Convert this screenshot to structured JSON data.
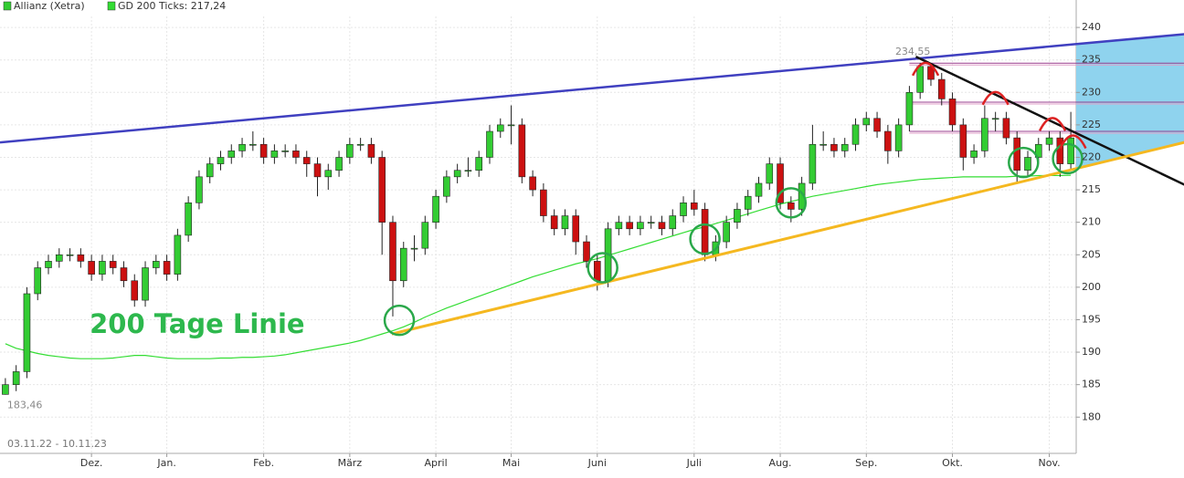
{
  "chart_data": {
    "type": "candlestick",
    "date_range": "03.11.22 - 10.11.23",
    "categories": [
      null,
      null,
      null,
      null,
      null,
      null,
      null,
      null,
      "Dez.",
      null,
      null,
      null,
      null,
      null,
      null,
      "Jan.",
      null,
      null,
      null,
      null,
      null,
      null,
      null,
      null,
      "Feb.",
      null,
      null,
      null,
      null,
      null,
      null,
      null,
      "März",
      null,
      null,
      null,
      null,
      null,
      null,
      null,
      "April",
      null,
      null,
      null,
      null,
      null,
      null,
      "Mai",
      null,
      null,
      null,
      null,
      null,
      null,
      null,
      "Juni",
      null,
      null,
      null,
      null,
      null,
      null,
      null,
      null,
      "Juli",
      null,
      null,
      null,
      null,
      null,
      null,
      null,
      "Aug.",
      null,
      null,
      null,
      null,
      null,
      null,
      null,
      "Sep.",
      null,
      null,
      null,
      null,
      null,
      null,
      null,
      "Okt.",
      null,
      null,
      null,
      null,
      null,
      null,
      null,
      null,
      "Nov.",
      null,
      null
    ],
    "series": [
      {
        "name": "Allianz (Xetra)",
        "type": "candlestick",
        "legend_color": "#33cc33",
        "up_color": "#33cc33",
        "down_color": "#cc1111",
        "open": [
          183.5,
          185,
          187,
          199,
          203,
          204,
          205,
          205,
          204,
          202,
          204,
          203,
          201,
          198,
          203,
          204,
          202,
          208,
          213,
          217,
          219,
          220,
          221,
          222,
          222,
          220,
          221,
          221,
          220,
          219,
          217,
          218,
          220,
          222,
          222,
          220,
          210,
          201,
          206,
          206,
          210,
          214,
          217,
          218,
          218,
          220,
          224,
          225,
          225,
          217,
          215,
          211,
          209,
          211,
          207,
          204,
          201,
          209,
          210,
          209,
          210,
          210,
          209,
          211,
          213,
          212,
          205,
          207,
          210,
          212,
          214,
          216,
          219,
          213,
          212,
          216,
          222,
          222,
          221,
          222,
          225,
          226,
          224,
          221,
          225,
          230,
          234,
          232,
          229,
          225,
          220,
          221,
          226,
          226,
          223,
          218,
          220,
          222,
          223,
          219
        ],
        "high": [
          186,
          188,
          200,
          204,
          205,
          206,
          206,
          206,
          205,
          205,
          205,
          204,
          202,
          204,
          205,
          205,
          209,
          214,
          218,
          220,
          221,
          222,
          223,
          224,
          223,
          222,
          222,
          222,
          221,
          220,
          219,
          221,
          223,
          223,
          223,
          221,
          211,
          207,
          208,
          211,
          215,
          218,
          219,
          220,
          221,
          225,
          226,
          228,
          226,
          218,
          216,
          212,
          212,
          212,
          208,
          205,
          210,
          211,
          211,
          211,
          211,
          211,
          212,
          214,
          215,
          213,
          208,
          211,
          213,
          215,
          217,
          220,
          220,
          214,
          217,
          225,
          224,
          223,
          223,
          226,
          227,
          227,
          225,
          226,
          231,
          234.55,
          234.5,
          233,
          230,
          226,
          222,
          228,
          227,
          227,
          224,
          221,
          223,
          224,
          224,
          227
        ],
        "low": [
          183.46,
          184,
          186,
          198,
          202,
          203,
          204,
          203,
          201,
          201,
          202,
          200,
          197,
          197,
          202,
          201,
          201,
          207,
          212,
          216,
          218,
          219,
          220,
          221,
          219,
          219,
          220,
          219,
          217,
          214,
          215,
          217,
          219,
          221,
          219,
          205,
          195.5,
          200,
          204,
          205,
          209,
          213,
          216,
          217,
          217,
          219,
          223,
          222,
          216,
          214,
          210,
          208,
          208,
          205,
          203,
          199.5,
          200,
          208,
          208,
          208,
          209,
          208,
          208,
          210,
          211,
          204,
          204,
          206,
          209,
          211,
          213,
          215,
          212,
          210,
          211,
          215,
          221,
          220,
          220,
          221,
          224,
          223,
          219,
          220,
          224,
          229,
          231,
          228,
          224,
          218,
          219,
          220,
          224,
          222,
          216,
          217,
          219,
          221,
          217,
          218
        ],
        "close": [
          185,
          187,
          199,
          203,
          204,
          205,
          205,
          204,
          202,
          204,
          203,
          201,
          198,
          203,
          204,
          202,
          208,
          213,
          217,
          219,
          220,
          221,
          222,
          222,
          220,
          221,
          221,
          220,
          219,
          217,
          218,
          220,
          222,
          222,
          220,
          210,
          201,
          206,
          206,
          210,
          214,
          217,
          218,
          218,
          220,
          224,
          225,
          225,
          217,
          215,
          211,
          209,
          211,
          207,
          204,
          201,
          209,
          210,
          209,
          210,
          210,
          209,
          211,
          213,
          212,
          205,
          207,
          210,
          212,
          214,
          216,
          219,
          213,
          212,
          216,
          222,
          222,
          221,
          222,
          225,
          226,
          224,
          221,
          225,
          230,
          234,
          232,
          229,
          225,
          220,
          221,
          226,
          226,
          223,
          218,
          220,
          222,
          223,
          219,
          223
        ]
      },
      {
        "name": "GD 200 Ticks: 217,24",
        "type": "line",
        "color": "#33dd33",
        "values": [
          191.3,
          190.6,
          190.2,
          189.8,
          189.5,
          189.3,
          189.1,
          189.0,
          189.0,
          189.0,
          189.1,
          189.3,
          189.5,
          189.5,
          189.3,
          189.1,
          189.0,
          189.0,
          189.0,
          189.0,
          189.1,
          189.1,
          189.2,
          189.2,
          189.3,
          189.4,
          189.6,
          189.9,
          190.2,
          190.5,
          190.8,
          191.1,
          191.4,
          191.8,
          192.3,
          192.8,
          193.3,
          193.9,
          194.6,
          195.4,
          196.1,
          196.8,
          197.4,
          198.0,
          198.6,
          199.2,
          199.8,
          200.4,
          201.0,
          201.6,
          202.1,
          202.6,
          203.1,
          203.6,
          204.0,
          204.4,
          204.9,
          205.4,
          205.9,
          206.4,
          206.9,
          207.4,
          207.9,
          208.4,
          208.9,
          209.3,
          209.8,
          210.3,
          210.8,
          211.3,
          211.8,
          212.3,
          212.8,
          213.2,
          213.6,
          214.0,
          214.3,
          214.6,
          214.9,
          215.2,
          215.5,
          215.8,
          216.0,
          216.2,
          216.4,
          216.6,
          216.7,
          216.8,
          216.9,
          217.0,
          217.0,
          217.0,
          217.0,
          217.0,
          217.1,
          217.1,
          217.2,
          217.2,
          217.2,
          217.24
        ]
      }
    ],
    "ylim": [
      175.4,
      241.7
    ],
    "yticks": [
      180,
      185,
      190,
      195,
      200,
      205,
      210,
      215,
      220,
      225,
      230,
      235,
      240
    ],
    "grid": true,
    "trendlines": [
      {
        "color": "#4040c0",
        "points": [
          [
            -0.5,
            222.3
          ],
          [
            109.8,
            239.0
          ]
        ]
      },
      {
        "color": "#111111",
        "points": [
          [
            84.6,
            235.5
          ],
          [
            109.8,
            215.6
          ]
        ]
      },
      {
        "color": "#f5b820",
        "points": [
          [
            35.9,
            192.8
          ],
          [
            109.8,
            222.4
          ]
        ]
      }
    ],
    "resistance_lines": {
      "color": "#9a3f8f",
      "from": 84,
      "levels": [
        234.5,
        228.5,
        224.0
      ]
    },
    "circles": {
      "color": "#2aa84a",
      "points": [
        [
          36.6,
          194.9
        ],
        [
          55.5,
          203.0
        ],
        [
          65.0,
          207.4
        ],
        [
          73.0,
          213.0
        ],
        [
          94.6,
          219.2
        ],
        [
          98.7,
          219.8
        ]
      ]
    },
    "arcs": {
      "color": "#dd2222",
      "points": [
        [
          85.5,
          234.0
        ],
        [
          92.0,
          229.5
        ],
        [
          97.3,
          225.5
        ],
        [
          99.2,
          222.8
        ]
      ]
    },
    "annotations": [
      {
        "text": "200 Tage Linie",
        "color": "#2db84d",
        "index": 8,
        "value": 193.5
      },
      {
        "text": "234,55",
        "index": 85,
        "value": 234.55
      },
      {
        "text": "183,46",
        "index": 0,
        "value": 183.46
      }
    ]
  }
}
